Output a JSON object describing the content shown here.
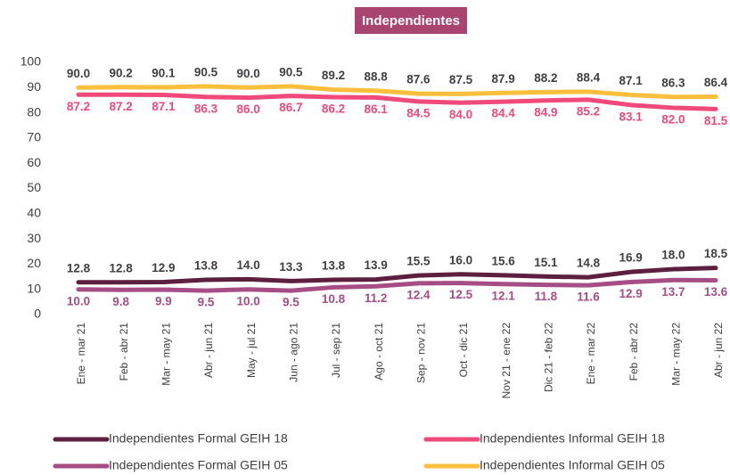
{
  "chart_data": {
    "type": "line",
    "title": "Independientes",
    "title_color": "#a8446f",
    "categories": [
      "Ene - mar 21",
      "Feb - abr 21",
      "Mar - may 21",
      "Abr - jun 21",
      "May - jul 21",
      "Jun - ago 21",
      "Jul - sep 21",
      "Ago - oct 21",
      "Sep - nov 21",
      "Oct - dic 21",
      "Nov 21 - ene 22",
      "Dic 21 - feb 22",
      "Ene - mar 22",
      "Feb - abr 22",
      "Mar - may 22",
      "Abr - jun 22"
    ],
    "series": [
      {
        "name": "Independientes Formal GEIH 18",
        "color": "#5c1f3d",
        "label_color": "#404040",
        "values": [
          12.8,
          12.8,
          12.9,
          13.8,
          14.0,
          13.3,
          13.8,
          13.9,
          15.5,
          16.0,
          15.6,
          15.1,
          14.8,
          16.9,
          18.0,
          18.5
        ],
        "value_labels": [
          "12.8",
          "12.8",
          "12.9",
          "13.8",
          "14.0",
          "13.3",
          "13.8",
          "13.9",
          "15.5",
          "16.0",
          "15.6",
          "15.1",
          "14.8",
          "16.9",
          "18.0",
          "18.5"
        ]
      },
      {
        "name": "Independientes Informal GEIH 18",
        "color": "#ef4a7a",
        "label_color": "#ef4a7a",
        "values": [
          87.2,
          87.2,
          87.1,
          86.3,
          86.0,
          86.7,
          86.2,
          86.1,
          84.5,
          84.0,
          84.4,
          84.9,
          85.2,
          83.1,
          82.0,
          81.5
        ],
        "value_labels": [
          "87.2",
          "87.2",
          "87.1",
          "86.3",
          "86.0",
          "86.7",
          "86.2",
          "86.1",
          "84.5",
          "84.0",
          "84.4",
          "84.9",
          "85.2",
          "83.1",
          "82.0",
          "81.5"
        ]
      },
      {
        "name": "Independientes Formal GEIH 05",
        "color": "#a64d86",
        "label_color": "#a64d86",
        "values": [
          10.0,
          9.8,
          9.9,
          9.5,
          10.0,
          9.5,
          10.8,
          11.2,
          12.4,
          12.5,
          12.1,
          11.8,
          11.6,
          12.9,
          13.7,
          13.6
        ],
        "value_labels": [
          "10.0",
          "9.8",
          "9.9",
          "9.5",
          "10.0",
          "9.5",
          "10.8",
          "11.2",
          "12.4",
          "12.5",
          "12.1",
          "11.8",
          "11.6",
          "12.9",
          "13.7",
          "13.6"
        ]
      },
      {
        "name": "Independientes Informal GEIH 05",
        "color": "#fbbf3b",
        "label_color": "#404040",
        "values": [
          90.0,
          90.2,
          90.1,
          90.5,
          90.0,
          90.5,
          89.2,
          88.8,
          87.6,
          87.5,
          87.9,
          88.2,
          88.4,
          87.1,
          86.3,
          86.4
        ],
        "value_labels": [
          "90.0",
          "90.2",
          "90.1",
          "90.5",
          "90.0",
          "90.5",
          "89.2",
          "88.8",
          "87.6",
          "87.5",
          "87.9",
          "88.2",
          "88.4",
          "87.1",
          "86.3",
          "86.4"
        ]
      }
    ],
    "ylim": [
      0,
      100
    ],
    "yticks": [
      0,
      10,
      20,
      30,
      40,
      50,
      60,
      70,
      80,
      90,
      100
    ],
    "grid": false
  }
}
